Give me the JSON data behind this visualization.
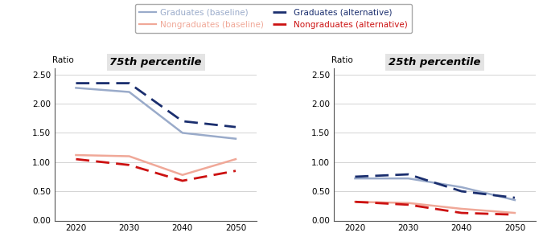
{
  "years": [
    2020,
    2030,
    2040,
    2050
  ],
  "p75": {
    "grad_baseline": [
      2.27,
      2.2,
      1.5,
      1.4
    ],
    "grad_alt": [
      2.35,
      2.35,
      1.7,
      1.6
    ],
    "nongrad_baseline": [
      1.12,
      1.1,
      0.78,
      1.05
    ],
    "nongrad_alt": [
      1.05,
      0.95,
      0.68,
      0.85
    ]
  },
  "p25": {
    "grad_baseline": [
      0.72,
      0.72,
      0.57,
      0.35
    ],
    "grad_alt": [
      0.75,
      0.79,
      0.5,
      0.39
    ],
    "nongrad_baseline": [
      0.32,
      0.3,
      0.2,
      0.13
    ],
    "nongrad_alt": [
      0.32,
      0.27,
      0.13,
      0.1
    ]
  },
  "ylim": [
    0.0,
    2.6
  ],
  "yticks": [
    0.0,
    0.5,
    1.0,
    1.5,
    2.0,
    2.5
  ],
  "title_75": "75th percentile",
  "title_25": "25th percentile",
  "ylabel": "Ratio",
  "color_grad_baseline": "#9aabca",
  "color_grad_alt": "#1a2e6e",
  "color_nongrad_baseline": "#f0a898",
  "color_nongrad_alt": "#cc1111",
  "legend_labels": [
    "Graduates (baseline)",
    "Nongraduates (baseline)",
    "Graduates (alternative)",
    "Nongraduates (alternative)"
  ],
  "bg_title": "#e4e4e4"
}
